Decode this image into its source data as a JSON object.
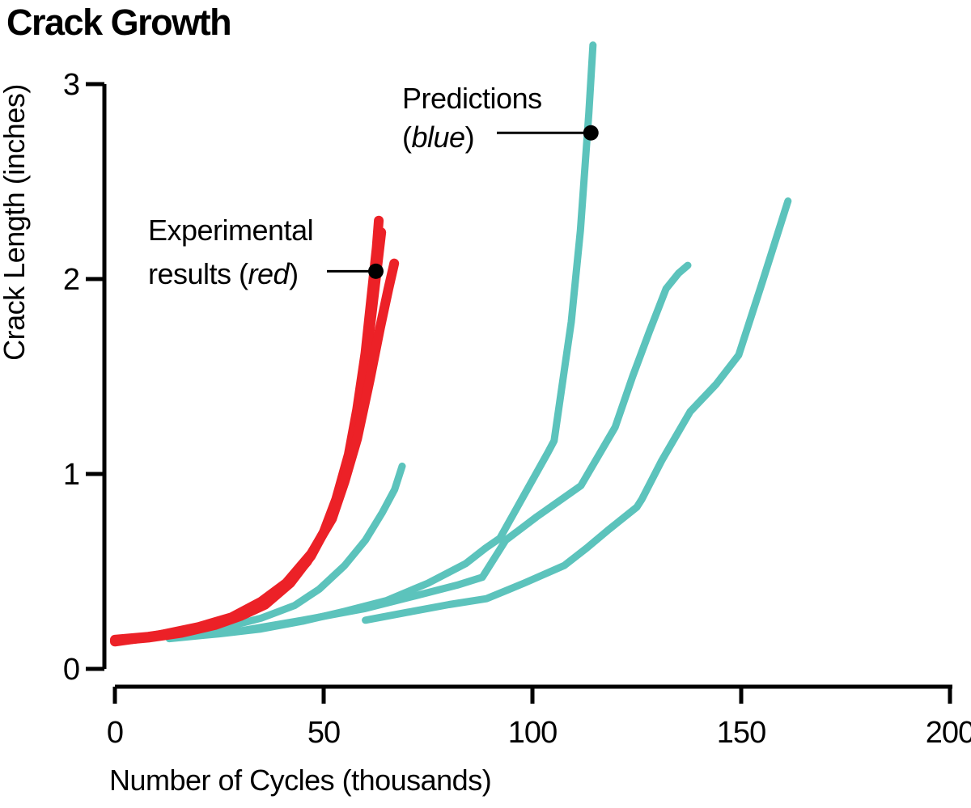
{
  "title": "Crack Growth",
  "colors": {
    "experimental_red": "#ec2127",
    "prediction_teal": "#5cc3bc",
    "axis_black": "#000000",
    "annotation_black": "#000000",
    "background": "#ffffff"
  },
  "chart_data": {
    "type": "line",
    "title": "Crack Growth",
    "xlabel": "Number of Cycles (thousands)",
    "ylabel": "Crack Length (inches)",
    "xlim": [
      0,
      200
    ],
    "ylim": [
      0,
      3
    ],
    "x_ticks": [
      0,
      50,
      100,
      150,
      200
    ],
    "x_tick_labels": [
      "0",
      "50",
      "100",
      "150",
      "200"
    ],
    "y_ticks": [
      0,
      1,
      2,
      3
    ],
    "y_tick_labels": [
      "0",
      "1",
      "2",
      "3"
    ],
    "grid": false,
    "legend_position": "none (direct line annotations)",
    "series": [
      {
        "name": "experimental-1",
        "group": "experimental",
        "color": "#ec2127",
        "stroke_width": 12,
        "points": [
          [
            0,
            0.15
          ],
          [
            8,
            0.165
          ],
          [
            16,
            0.19
          ],
          [
            24,
            0.23
          ],
          [
            30,
            0.275
          ],
          [
            36,
            0.34
          ],
          [
            41,
            0.43
          ],
          [
            46,
            0.55
          ],
          [
            50,
            0.7
          ],
          [
            53,
            0.87
          ],
          [
            56,
            1.1
          ],
          [
            58,
            1.33
          ],
          [
            60,
            1.62
          ],
          [
            61.5,
            1.92
          ],
          [
            62.7,
            2.16
          ],
          [
            63.2,
            2.3
          ]
        ]
      },
      {
        "name": "experimental-2",
        "group": "experimental",
        "color": "#ec2127",
        "stroke_width": 12,
        "points": [
          [
            0,
            0.145
          ],
          [
            8,
            0.16
          ],
          [
            16,
            0.185
          ],
          [
            24,
            0.225
          ],
          [
            30,
            0.27
          ],
          [
            36,
            0.33
          ],
          [
            42,
            0.44
          ],
          [
            47,
            0.58
          ],
          [
            51,
            0.74
          ],
          [
            54,
            0.92
          ],
          [
            57,
            1.17
          ],
          [
            59,
            1.42
          ],
          [
            61,
            1.73
          ],
          [
            62.6,
            2.02
          ],
          [
            63.8,
            2.24
          ]
        ]
      },
      {
        "name": "experimental-3",
        "group": "experimental",
        "color": "#ec2127",
        "stroke_width": 12,
        "points": [
          [
            0,
            0.14
          ],
          [
            10,
            0.17
          ],
          [
            20,
            0.215
          ],
          [
            28,
            0.265
          ],
          [
            35,
            0.345
          ],
          [
            41,
            0.44
          ],
          [
            47,
            0.59
          ],
          [
            52,
            0.77
          ],
          [
            55,
            0.96
          ],
          [
            58,
            1.18
          ],
          [
            61,
            1.48
          ],
          [
            63.5,
            1.75
          ],
          [
            65.5,
            1.95
          ],
          [
            66.9,
            2.08
          ]
        ]
      },
      {
        "name": "prediction-short",
        "group": "prediction",
        "color": "#5cc3bc",
        "stroke_width": 9,
        "points": [
          [
            13,
            0.165
          ],
          [
            25,
            0.205
          ],
          [
            35,
            0.26
          ],
          [
            43,
            0.325
          ],
          [
            49,
            0.41
          ],
          [
            55,
            0.53
          ],
          [
            60,
            0.66
          ],
          [
            64,
            0.8
          ],
          [
            67,
            0.92
          ],
          [
            68.8,
            1.04
          ]
        ]
      },
      {
        "name": "prediction-tall",
        "group": "prediction",
        "color": "#5cc3bc",
        "stroke_width": 9,
        "points": [
          [
            13,
            0.155
          ],
          [
            25,
            0.18
          ],
          [
            35,
            0.205
          ],
          [
            45,
            0.245
          ],
          [
            55,
            0.295
          ],
          [
            65,
            0.35
          ],
          [
            75,
            0.44
          ],
          [
            84,
            0.54
          ],
          [
            88.8,
            0.62
          ],
          [
            92.2,
            0.67
          ],
          [
            103.7,
            1.11
          ],
          [
            105.2,
            1.17
          ],
          [
            109.3,
            1.78
          ],
          [
            111.5,
            2.25
          ],
          [
            113.5,
            2.85
          ],
          [
            114.5,
            3.2
          ]
        ]
      },
      {
        "name": "prediction-middle",
        "group": "prediction",
        "color": "#5cc3bc",
        "stroke_width": 9,
        "points": [
          [
            16,
            0.165
          ],
          [
            30,
            0.195
          ],
          [
            45,
            0.25
          ],
          [
            60,
            0.31
          ],
          [
            72,
            0.375
          ],
          [
            82,
            0.43
          ],
          [
            88,
            0.47
          ],
          [
            93.6,
            0.66
          ],
          [
            101,
            0.78
          ],
          [
            111.6,
            0.94
          ],
          [
            119.8,
            1.24
          ],
          [
            124,
            1.5
          ],
          [
            128,
            1.73
          ],
          [
            132,
            1.95
          ],
          [
            135,
            2.03
          ],
          [
            137.2,
            2.07
          ]
        ]
      },
      {
        "name": "prediction-right",
        "group": "prediction",
        "color": "#5cc3bc",
        "stroke_width": 9,
        "points": [
          [
            60,
            0.25
          ],
          [
            70,
            0.29
          ],
          [
            80,
            0.33
          ],
          [
            89,
            0.36
          ],
          [
            98,
            0.44
          ],
          [
            107.6,
            0.53
          ],
          [
            113,
            0.62
          ],
          [
            118,
            0.71
          ],
          [
            125,
            0.83
          ],
          [
            126.2,
            0.87
          ],
          [
            131,
            1.07
          ],
          [
            137.8,
            1.32
          ],
          [
            144,
            1.46
          ],
          [
            149.4,
            1.61
          ],
          [
            155,
            1.98
          ],
          [
            161.2,
            2.4
          ]
        ]
      }
    ],
    "annotations": [
      {
        "id": "predictions",
        "line1": "Predictions",
        "line2_pre": "(",
        "line2_italic": "blue",
        "line2_post": ")",
        "target": [
          114,
          2.75
        ]
      },
      {
        "id": "experimental",
        "line1": "Experimental",
        "line2_pre": "results (",
        "line2_italic": "red",
        "line2_post": ")",
        "target": [
          62.5,
          2.04
        ]
      }
    ]
  }
}
